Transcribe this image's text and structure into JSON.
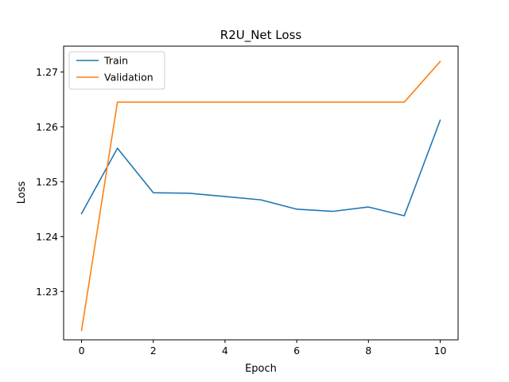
{
  "chart_data": {
    "type": "line",
    "title": "R2U_Net Loss",
    "xlabel": "Epoch",
    "ylabel": "Loss",
    "xlim": [
      -0.5,
      10.5
    ],
    "ylim": [
      1.2212,
      1.2747
    ],
    "x_ticks": [
      0,
      2,
      4,
      6,
      8,
      10
    ],
    "y_ticks": [
      1.23,
      1.24,
      1.25,
      1.26,
      1.27
    ],
    "grid": false,
    "legend_position": "upper-left",
    "x": [
      0,
      1,
      2,
      3,
      4,
      5,
      6,
      7,
      8,
      9,
      10
    ],
    "series": [
      {
        "name": "Train",
        "color": "#1f77b4",
        "values": [
          1.2442,
          1.2561,
          1.248,
          1.2479,
          1.2473,
          1.2467,
          1.245,
          1.2446,
          1.2454,
          1.2438,
          1.2612
        ]
      },
      {
        "name": "Validation",
        "color": "#ff7f0e",
        "values": [
          1.2229,
          1.2645,
          1.2645,
          1.2645,
          1.2645,
          1.2645,
          1.2645,
          1.2645,
          1.2645,
          1.2645,
          1.2719
        ]
      }
    ]
  }
}
